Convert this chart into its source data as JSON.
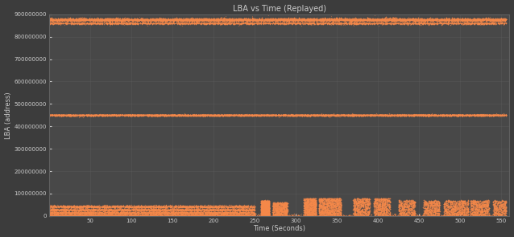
{
  "title": "LBA vs Time (Replayed)",
  "xlabel": "Time (Seconds)",
  "ylabel": "LBA (address)",
  "background_color": "#3c3c3c",
  "plot_bg_color": "#484848",
  "text_color": "#cccccc",
  "grid_color": "#606060",
  "orange_color": "#f5894a",
  "xlim": [
    0,
    560
  ],
  "ylim": [
    0,
    900000000
  ],
  "yticks": [
    0,
    100000000,
    200000000,
    300000000,
    400000000,
    500000000,
    600000000,
    700000000,
    800000000,
    900000000
  ],
  "xticks": [
    50,
    100,
    150,
    200,
    250,
    300,
    350,
    400,
    450,
    500,
    550
  ],
  "top_band_y": 876000000,
  "top_band_spread": 3000000,
  "top_band2_y": 860000000,
  "top_band2_spread": 2000000,
  "mid_band_y": 450000000,
  "mid_band_spread": 800000,
  "bot_band_y1": 10000000,
  "bot_band_y2": 25000000,
  "bot_band_y3": 40000000,
  "seed": 7
}
